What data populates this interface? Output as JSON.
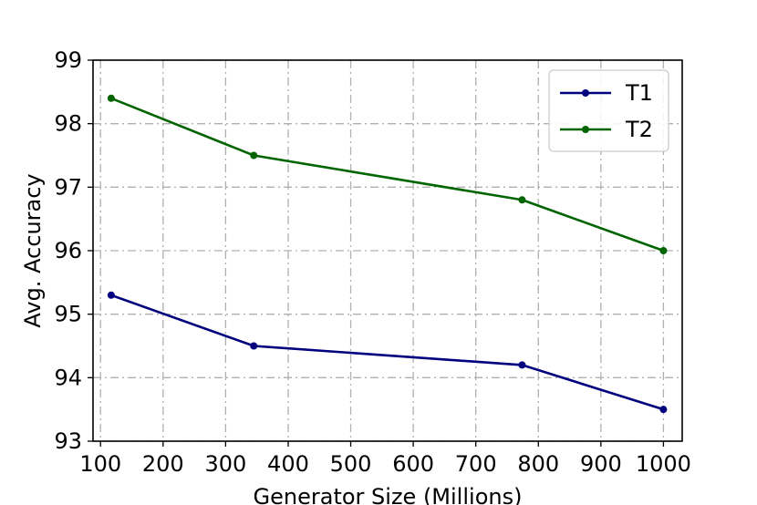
{
  "chart_data": {
    "type": "line",
    "title": "",
    "xlabel": "Generator Size (Millions)",
    "ylabel": "Avg. Accuracy",
    "x": [
      117,
      345,
      774,
      1000
    ],
    "xlim": [
      88,
      1030
    ],
    "ylim": [
      93,
      99
    ],
    "xticks": [
      100,
      200,
      300,
      400,
      500,
      600,
      700,
      800,
      900,
      1000
    ],
    "yticks": [
      93,
      94,
      95,
      96,
      97,
      98,
      99
    ],
    "grid": true,
    "grid_style": "dash-dot",
    "legend_position": "top-right",
    "series": [
      {
        "name": "T1",
        "color": "#00007f",
        "values": [
          95.3,
          94.5,
          94.2,
          93.5
        ]
      },
      {
        "name": "T2",
        "color": "#006400",
        "values": [
          98.4,
          97.5,
          96.8,
          96.0
        ]
      }
    ]
  }
}
